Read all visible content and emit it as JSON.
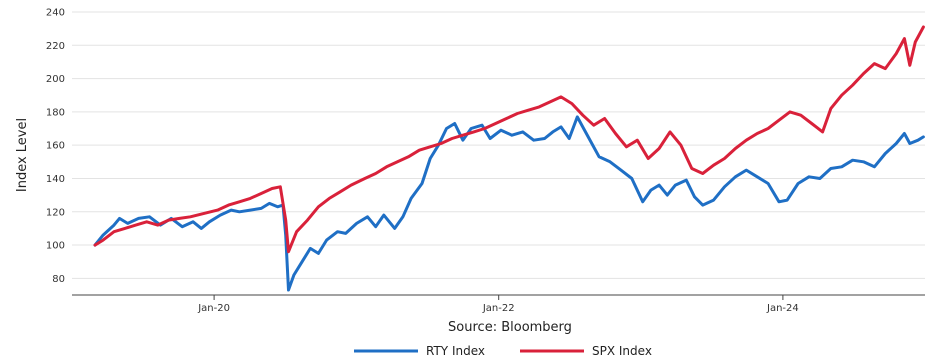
{
  "chart_data": {
    "type": "line",
    "xlabel": "",
    "ylabel": "Index Level",
    "ylim": [
      70,
      240
    ],
    "xlim": [
      "2019-01-01",
      "2024-12-31"
    ],
    "y_ticks": [
      80,
      100,
      120,
      140,
      160,
      180,
      200,
      220,
      240
    ],
    "x_ticks": [
      {
        "date": "2020-01-01",
        "label": "Jan-20"
      },
      {
        "date": "2022-01-01",
        "label": "Jan-22"
      },
      {
        "date": "2024-01-01",
        "label": "Jan-24"
      }
    ],
    "grid": true,
    "source": "Source: Bloomberg",
    "legend_position": "bottom",
    "series": [
      {
        "name": "RTY Index",
        "color": "#1f6fc5",
        "points": [
          [
            "2019-03-01",
            100
          ],
          [
            "2019-03-22",
            106
          ],
          [
            "2019-04-19",
            112
          ],
          [
            "2019-05-03",
            116
          ],
          [
            "2019-05-24",
            113
          ],
          [
            "2019-06-21",
            116
          ],
          [
            "2019-07-19",
            117
          ],
          [
            "2019-08-16",
            112
          ],
          [
            "2019-09-13",
            116
          ],
          [
            "2019-10-11",
            111
          ],
          [
            "2019-11-08",
            114
          ],
          [
            "2019-11-29",
            110
          ],
          [
            "2019-12-20",
            114
          ],
          [
            "2020-01-17",
            118
          ],
          [
            "2020-02-14",
            121
          ],
          [
            "2020-03-06",
            120
          ],
          [
            "2020-04-03",
            121
          ],
          [
            "2020-05-01",
            122
          ],
          [
            "2020-05-22",
            125
          ],
          [
            "2020-06-12",
            123
          ],
          [
            "2020-06-26",
            124
          ],
          [
            "2020-07-03",
            106
          ],
          [
            "2020-07-10",
            73
          ],
          [
            "2020-07-24",
            82
          ],
          [
            "2020-08-14",
            90
          ],
          [
            "2020-09-04",
            98
          ],
          [
            "2020-09-25",
            95
          ],
          [
            "2020-10-16",
            103
          ],
          [
            "2020-11-13",
            108
          ],
          [
            "2020-12-04",
            107
          ],
          [
            "2021-01-01",
            113
          ],
          [
            "2021-01-29",
            117
          ],
          [
            "2021-02-19",
            111
          ],
          [
            "2021-03-12",
            118
          ],
          [
            "2021-04-09",
            110
          ],
          [
            "2021-04-30",
            117
          ],
          [
            "2021-05-21",
            128
          ],
          [
            "2021-06-18",
            137
          ],
          [
            "2021-07-09",
            152
          ],
          [
            "2021-07-30",
            160
          ],
          [
            "2021-08-20",
            170
          ],
          [
            "2021-09-10",
            173
          ],
          [
            "2021-10-01",
            163
          ],
          [
            "2021-10-22",
            170
          ],
          [
            "2021-11-19",
            172
          ],
          [
            "2021-12-10",
            164
          ],
          [
            "2022-01-07",
            169
          ],
          [
            "2022-02-04",
            166
          ],
          [
            "2022-03-04",
            168
          ],
          [
            "2022-04-01",
            163
          ],
          [
            "2022-04-29",
            164
          ],
          [
            "2022-05-20",
            168
          ],
          [
            "2022-06-10",
            171
          ],
          [
            "2022-07-01",
            164
          ],
          [
            "2022-07-22",
            177
          ],
          [
            "2022-08-19",
            165
          ],
          [
            "2022-09-16",
            153
          ],
          [
            "2022-10-14",
            150
          ],
          [
            "2022-11-11",
            145
          ],
          [
            "2022-12-09",
            140
          ],
          [
            "2023-01-06",
            126
          ],
          [
            "2023-01-27",
            133
          ],
          [
            "2023-02-17",
            136
          ],
          [
            "2023-03-10",
            130
          ],
          [
            "2023-03-31",
            136
          ],
          [
            "2023-04-28",
            139
          ],
          [
            "2023-05-19",
            129
          ],
          [
            "2023-06-09",
            124
          ],
          [
            "2023-07-07",
            127
          ],
          [
            "2023-08-04",
            135
          ],
          [
            "2023-09-01",
            141
          ],
          [
            "2023-09-29",
            145
          ],
          [
            "2023-10-27",
            141
          ],
          [
            "2023-11-24",
            137
          ],
          [
            "2023-12-22",
            126
          ],
          [
            "2024-01-12",
            127
          ],
          [
            "2024-02-09",
            137
          ],
          [
            "2024-03-08",
            141
          ],
          [
            "2024-04-05",
            140
          ],
          [
            "2024-05-03",
            146
          ],
          [
            "2024-05-31",
            147
          ],
          [
            "2024-06-28",
            151
          ],
          [
            "2024-07-26",
            150
          ],
          [
            "2024-08-23",
            147
          ],
          [
            "2024-09-20",
            155
          ],
          [
            "2024-10-18",
            161
          ],
          [
            "2024-11-08",
            167
          ],
          [
            "2024-11-22",
            161
          ],
          [
            "2024-12-13",
            163
          ],
          [
            "2024-12-27",
            165
          ]
        ]
      },
      {
        "name": "SPX Index",
        "color": "#d9213a",
        "points": [
          [
            "2019-03-01",
            100
          ],
          [
            "2019-03-22",
            103
          ],
          [
            "2019-04-19",
            108
          ],
          [
            "2019-05-17",
            110
          ],
          [
            "2019-06-14",
            112
          ],
          [
            "2019-07-12",
            114
          ],
          [
            "2019-08-09",
            112
          ],
          [
            "2019-09-06",
            115
          ],
          [
            "2019-10-04",
            116
          ],
          [
            "2019-11-01",
            117
          ],
          [
            "2019-12-06",
            119
          ],
          [
            "2020-01-10",
            121
          ],
          [
            "2020-02-07",
            124
          ],
          [
            "2020-03-06",
            126
          ],
          [
            "2020-04-03",
            128
          ],
          [
            "2020-05-01",
            131
          ],
          [
            "2020-05-29",
            134
          ],
          [
            "2020-06-19",
            135
          ],
          [
            "2020-07-03",
            115
          ],
          [
            "2020-07-10",
            96
          ],
          [
            "2020-07-31",
            108
          ],
          [
            "2020-08-28",
            115
          ],
          [
            "2020-09-25",
            123
          ],
          [
            "2020-10-23",
            128
          ],
          [
            "2020-11-20",
            132
          ],
          [
            "2020-12-18",
            136
          ],
          [
            "2021-01-22",
            140
          ],
          [
            "2021-02-19",
            143
          ],
          [
            "2021-03-19",
            147
          ],
          [
            "2021-04-16",
            150
          ],
          [
            "2021-05-14",
            153
          ],
          [
            "2021-06-11",
            157
          ],
          [
            "2021-07-09",
            159
          ],
          [
            "2021-08-06",
            161
          ],
          [
            "2021-09-03",
            164
          ],
          [
            "2021-10-01",
            166
          ],
          [
            "2021-10-29",
            168
          ],
          [
            "2021-11-26",
            170
          ],
          [
            "2021-12-24",
            173
          ],
          [
            "2022-01-21",
            176
          ],
          [
            "2022-02-18",
            179
          ],
          [
            "2022-03-18",
            181
          ],
          [
            "2022-04-15",
            183
          ],
          [
            "2022-05-13",
            186
          ],
          [
            "2022-06-10",
            189
          ],
          [
            "2022-07-08",
            185
          ],
          [
            "2022-08-05",
            178
          ],
          [
            "2022-09-02",
            172
          ],
          [
            "2022-09-30",
            176
          ],
          [
            "2022-10-28",
            167
          ],
          [
            "2022-11-25",
            159
          ],
          [
            "2022-12-23",
            163
          ],
          [
            "2023-01-20",
            152
          ],
          [
            "2023-02-17",
            158
          ],
          [
            "2023-03-17",
            168
          ],
          [
            "2023-04-14",
            160
          ],
          [
            "2023-05-12",
            146
          ],
          [
            "2023-06-09",
            143
          ],
          [
            "2023-07-07",
            148
          ],
          [
            "2023-08-04",
            152
          ],
          [
            "2023-09-01",
            158
          ],
          [
            "2023-09-29",
            163
          ],
          [
            "2023-10-27",
            167
          ],
          [
            "2023-11-24",
            170
          ],
          [
            "2023-12-22",
            175
          ],
          [
            "2024-01-19",
            180
          ],
          [
            "2024-02-16",
            178
          ],
          [
            "2024-03-15",
            173
          ],
          [
            "2024-04-12",
            168
          ],
          [
            "2024-05-03",
            182
          ],
          [
            "2024-05-31",
            190
          ],
          [
            "2024-06-28",
            196
          ],
          [
            "2024-07-26",
            203
          ],
          [
            "2024-08-23",
            209
          ],
          [
            "2024-09-20",
            206
          ],
          [
            "2024-10-18",
            215
          ],
          [
            "2024-11-08",
            224
          ],
          [
            "2024-11-22",
            208
          ],
          [
            "2024-12-06",
            222
          ],
          [
            "2024-12-27",
            231
          ]
        ]
      }
    ]
  }
}
